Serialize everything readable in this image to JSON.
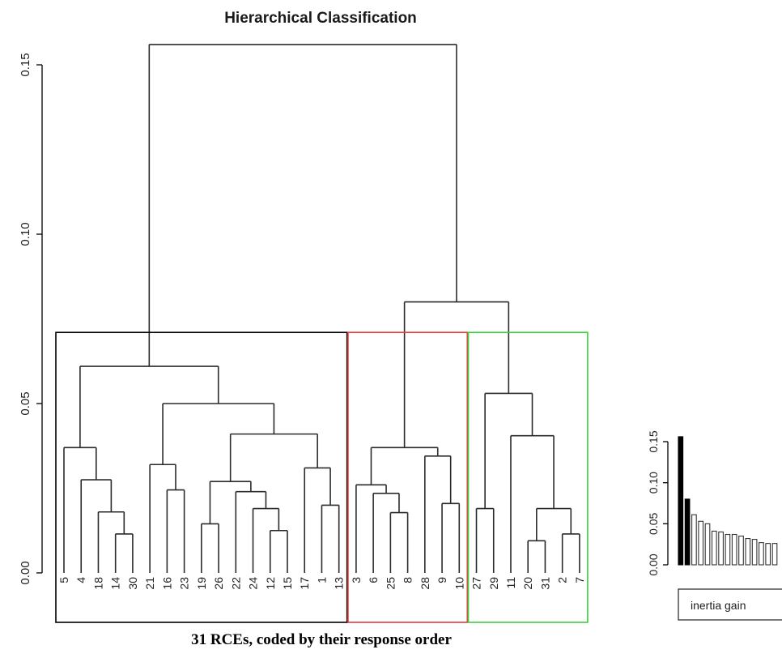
{
  "chart_data": [
    {
      "type": "dendrogram",
      "title": "Hierarchical Classification",
      "xlabel": "31 RCEs, coded by their response order",
      "ylabel": "",
      "ylim": [
        0,
        0.16
      ],
      "yticks": [
        0.0,
        0.05,
        0.1,
        0.15
      ],
      "ytick_labels": [
        "0.00",
        "0.05",
        "0.10",
        "0.15"
      ],
      "leaf_order": [
        "5",
        "4",
        "18",
        "14",
        "30",
        "21",
        "16",
        "23",
        "19",
        "26",
        "22",
        "24",
        "12",
        "15",
        "17",
        "1",
        "13",
        "3",
        "6",
        "25",
        "8",
        "28",
        "9",
        "10",
        "27",
        "29",
        "11",
        "20",
        "31",
        "2",
        "7"
      ],
      "merges": [
        {
          "left": "14",
          "right": "30",
          "height": 0.0115
        },
        {
          "left": "18",
          "right": [
            "14",
            "30"
          ],
          "height": 0.018
        },
        {
          "left": "4",
          "right": [
            "18",
            "14",
            "30"
          ],
          "height": 0.0275
        },
        {
          "left": "5",
          "right": [
            "4",
            "18",
            "14",
            "30"
          ],
          "height": 0.037
        },
        {
          "left": "16",
          "right": "23",
          "height": 0.0245
        },
        {
          "left": "21",
          "right": [
            "16",
            "23"
          ],
          "height": 0.032
        },
        {
          "left": "12",
          "right": "15",
          "height": 0.0125
        },
        {
          "left": "24",
          "right": [
            "12",
            "15"
          ],
          "height": 0.019
        },
        {
          "left": "22",
          "right": [
            "24",
            "12",
            "15"
          ],
          "height": 0.024
        },
        {
          "left": "19",
          "right": "26",
          "height": 0.0145
        },
        {
          "left": [
            "19",
            "26"
          ],
          "right": [
            "22",
            "24",
            "12",
            "15"
          ],
          "height": 0.027
        },
        {
          "left": "1",
          "right": "13",
          "height": 0.02
        },
        {
          "left": "17",
          "right": [
            "1",
            "13"
          ],
          "height": 0.031
        },
        {
          "left": [
            "19",
            "26",
            "22",
            "24",
            "12",
            "15"
          ],
          "right": [
            "17",
            "1",
            "13"
          ],
          "height": 0.041
        },
        {
          "left": [
            "21",
            "16",
            "23"
          ],
          "right": [
            "19",
            "26",
            "22",
            "24",
            "12",
            "15",
            "17",
            "1",
            "13"
          ],
          "height": 0.05
        },
        {
          "left": [
            "5",
            "4",
            "18",
            "14",
            "30"
          ],
          "right": [
            "21",
            "16",
            "23",
            "19",
            "26",
            "22",
            "24",
            "12",
            "15",
            "17",
            "1",
            "13"
          ],
          "height": 0.061
        },
        {
          "left": "25",
          "right": "8",
          "height": 0.0178
        },
        {
          "left": "6",
          "right": [
            "25",
            "8"
          ],
          "height": 0.0235
        },
        {
          "left": "3",
          "right": [
            "6",
            "25",
            "8"
          ],
          "height": 0.026
        },
        {
          "left": "9",
          "right": "10",
          "height": 0.0205
        },
        {
          "left": "28",
          "right": [
            "9",
            "10"
          ],
          "height": 0.0345
        },
        {
          "left": [
            "3",
            "6",
            "25",
            "8"
          ],
          "right": [
            "28",
            "9",
            "10"
          ],
          "height": 0.037
        },
        {
          "left": "20",
          "right": "31",
          "height": 0.0095
        },
        {
          "left": "2",
          "right": "7",
          "height": 0.0115
        },
        {
          "left": [
            "20",
            "31"
          ],
          "right": [
            "2",
            "7"
          ],
          "height": 0.019
        },
        {
          "left": "11",
          "right": [
            "20",
            "31",
            "2",
            "7"
          ],
          "height": 0.0405
        },
        {
          "left": "27",
          "right": "29",
          "height": 0.019
        },
        {
          "left": [
            "27",
            "29"
          ],
          "right": [
            "11",
            "20",
            "31",
            "2",
            "7"
          ],
          "height": 0.053
        },
        {
          "left": [
            "3",
            "6",
            "25",
            "8",
            "28",
            "9",
            "10"
          ],
          "right": [
            "27",
            "29",
            "11",
            "20",
            "31",
            "2",
            "7"
          ],
          "height": 0.08
        },
        {
          "left": "group-1",
          "right": "groups-2-3",
          "height": 0.156
        }
      ],
      "clusters": [
        {
          "leaves": [
            "5",
            "4",
            "18",
            "14",
            "30",
            "21",
            "16",
            "23",
            "19",
            "26",
            "22",
            "24",
            "12",
            "15",
            "17",
            "1",
            "13"
          ],
          "color": "#000000"
        },
        {
          "leaves": [
            "3",
            "6",
            "25",
            "8",
            "28",
            "9",
            "10"
          ],
          "color": "#e8393a"
        },
        {
          "leaves": [
            "27",
            "29",
            "11",
            "20",
            "31",
            "2",
            "7"
          ],
          "color": "#3ad13a"
        }
      ],
      "colors": {
        "tree": "#000000",
        "cluster_1": "#000000",
        "cluster_2": "#e8393a",
        "cluster_3": "#3ad13a",
        "axis": "#000000"
      }
    },
    {
      "type": "bar",
      "title": "",
      "legend_label": "inertia gain",
      "ylim": [
        0,
        0.16
      ],
      "yticks": [
        0.0,
        0.05,
        0.1,
        0.15
      ],
      "ytick_labels": [
        "0.00",
        "0.05",
        "0.10",
        "0.15"
      ],
      "values": [
        0.156,
        0.08,
        0.061,
        0.053,
        0.05,
        0.041,
        0.04,
        0.037,
        0.037,
        0.035,
        0.032,
        0.031,
        0.027,
        0.026,
        0.026
      ],
      "highlighted_count": 2,
      "colors": {
        "highlighted": "#000000",
        "normal": "#ffffff",
        "border": "#333333"
      }
    }
  ]
}
